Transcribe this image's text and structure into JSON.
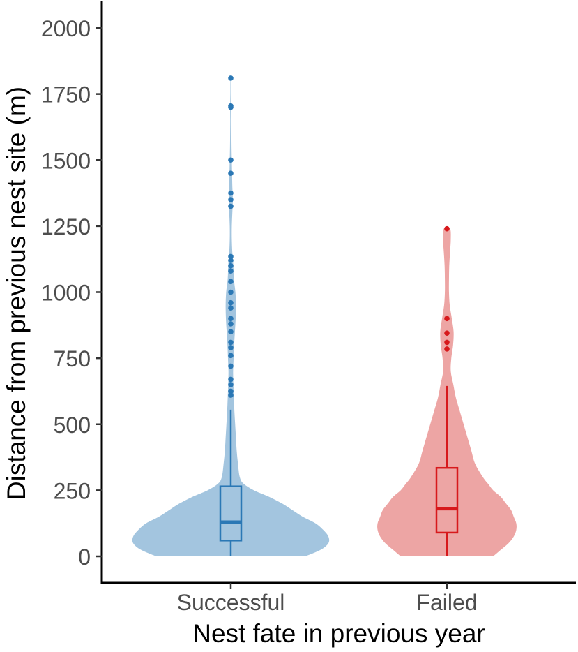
{
  "chart_data": {
    "type": "violin",
    "xlabel": "Nest fate in previous year",
    "ylabel": "Distance from previous nest site (m)",
    "ylim": [
      -100,
      2100
    ],
    "yticks": [
      0,
      250,
      500,
      750,
      1000,
      1250,
      1500,
      1750,
      2000
    ],
    "ytick_labels": [
      "0",
      "250",
      "500",
      "750",
      "1000",
      "1250",
      "1500",
      "1750",
      "2000"
    ],
    "categories": [
      "Successful",
      "Failed"
    ],
    "grid": false,
    "legend": "none",
    "groups": [
      {
        "category": "Successful",
        "fill_color": "#a3c5df",
        "line_color": "#2b78b5",
        "box": {
          "q1": 60,
          "median": 130,
          "q3": 265,
          "whisker_low": 0,
          "whisker_high": 555
        },
        "density": [
          [
            0,
            0.29
          ],
          [
            25,
            0.35
          ],
          [
            50,
            0.38
          ],
          [
            75,
            0.38
          ],
          [
            100,
            0.36
          ],
          [
            125,
            0.33
          ],
          [
            150,
            0.28
          ],
          [
            175,
            0.24
          ],
          [
            200,
            0.2
          ],
          [
            225,
            0.15
          ],
          [
            250,
            0.09
          ],
          [
            275,
            0.05
          ],
          [
            300,
            0.035
          ],
          [
            350,
            0.028
          ],
          [
            400,
            0.023
          ],
          [
            450,
            0.02
          ],
          [
            500,
            0.017
          ],
          [
            550,
            0.014
          ],
          [
            600,
            0.012
          ],
          [
            650,
            0.01
          ],
          [
            700,
            0.009
          ],
          [
            750,
            0.011
          ],
          [
            800,
            0.013
          ],
          [
            850,
            0.016
          ],
          [
            900,
            0.019
          ],
          [
            950,
            0.02
          ],
          [
            1000,
            0.018
          ],
          [
            1050,
            0.012
          ],
          [
            1100,
            0.01
          ],
          [
            1150,
            0.006
          ],
          [
            1200,
            0.004
          ],
          [
            1250,
            0.004
          ],
          [
            1300,
            0.006
          ],
          [
            1350,
            0.008
          ],
          [
            1400,
            0.006
          ],
          [
            1450,
            0.005
          ],
          [
            1500,
            0.004
          ],
          [
            1550,
            0.003
          ],
          [
            1600,
            0.0025
          ],
          [
            1650,
            0.002
          ],
          [
            1700,
            0.0025
          ],
          [
            1750,
            0.0015
          ],
          [
            1810,
            0.001
          ]
        ],
        "outliers": [
          610,
          625,
          650,
          670,
          720,
          760,
          790,
          810,
          850,
          880,
          900,
          940,
          960,
          1000,
          1040,
          1080,
          1100,
          1120,
          1135,
          1325,
          1350,
          1375,
          1450,
          1500,
          1700,
          1705,
          1810
        ]
      },
      {
        "category": "Failed",
        "fill_color": "#eda5a4",
        "line_color": "#d7191c",
        "box": {
          "q1": 90,
          "median": 180,
          "q3": 335,
          "whisker_low": 0,
          "whisker_high": 645
        },
        "density": [
          [
            0,
            0.18
          ],
          [
            25,
            0.21
          ],
          [
            50,
            0.24
          ],
          [
            75,
            0.26
          ],
          [
            100,
            0.27
          ],
          [
            125,
            0.27
          ],
          [
            150,
            0.26
          ],
          [
            175,
            0.25
          ],
          [
            200,
            0.23
          ],
          [
            225,
            0.21
          ],
          [
            250,
            0.18
          ],
          [
            275,
            0.16
          ],
          [
            300,
            0.14
          ],
          [
            350,
            0.11
          ],
          [
            400,
            0.095
          ],
          [
            450,
            0.08
          ],
          [
            500,
            0.065
          ],
          [
            550,
            0.05
          ],
          [
            600,
            0.035
          ],
          [
            650,
            0.025
          ],
          [
            700,
            0.015
          ],
          [
            750,
            0.017
          ],
          [
            800,
            0.024
          ],
          [
            850,
            0.026
          ],
          [
            900,
            0.019
          ],
          [
            950,
            0.011
          ],
          [
            1000,
            0.008
          ],
          [
            1050,
            0.008
          ],
          [
            1100,
            0.009
          ],
          [
            1150,
            0.012
          ],
          [
            1200,
            0.015
          ],
          [
            1240,
            0.012
          ]
        ],
        "outliers": [
          785,
          810,
          845,
          900,
          1240
        ]
      }
    ]
  }
}
